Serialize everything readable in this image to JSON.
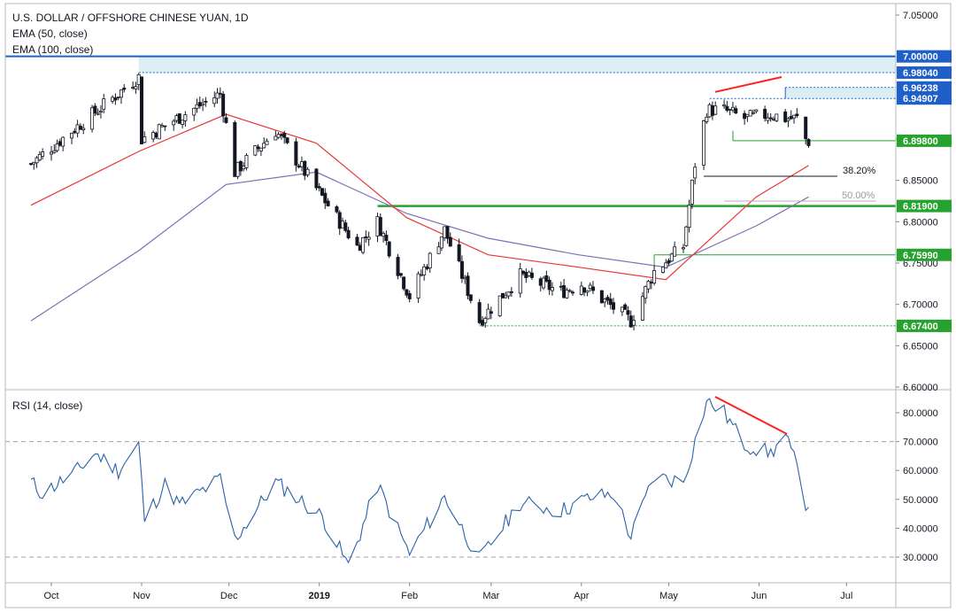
{
  "header": {
    "title": "U.S. DOLLAR / OFFSHORE CHINESE YUAN, 1D",
    "ema50": "EMA (50, close)",
    "ema100": "EMA (100, close)",
    "rsi_title": "RSI (14, close)"
  },
  "colors": {
    "up_candle": "#ffffff",
    "down_candle": "#131722",
    "ema50": "#e53935",
    "ema100": "#7e6fb5",
    "rsi": "#2962a8",
    "level_blue": "#1e5fc9",
    "level_green": "#26a22f",
    "divergence": "#ff2020",
    "fib_line": "#131722"
  },
  "chart_data": [
    {
      "type": "candlestick",
      "title": "U.S. DOLLAR / OFFSHORE CHINESE YUAN, 1D",
      "indicators": [
        "EMA (50, close)",
        "EMA (100, close)"
      ],
      "x_labels": [
        "Oct",
        "Nov",
        "Dec",
        "2019",
        "Feb",
        "Mar",
        "Apr",
        "May",
        "Jun",
        "Jul"
      ],
      "y_ticks": [
        "6.60000",
        "6.65000",
        "6.70000",
        "6.75000",
        "6.80000",
        "6.85000",
        "6.90000",
        "7.05000"
      ],
      "ylim": [
        6.6,
        7.06
      ],
      "key_points": [
        {
          "date": "2018-09-24",
          "close": 6.87
        },
        {
          "date": "2018-10-31",
          "close": 6.975
        },
        {
          "date": "2018-11-01",
          "close": 6.9
        },
        {
          "date": "2018-11-28",
          "close": 6.955
        },
        {
          "date": "2018-12-03",
          "close": 6.86
        },
        {
          "date": "2018-12-17",
          "close": 6.91
        },
        {
          "date": "2019-01-14",
          "close": 6.77
        },
        {
          "date": "2019-01-21",
          "close": 6.8
        },
        {
          "date": "2019-02-01",
          "close": 6.71
        },
        {
          "date": "2019-02-13",
          "close": 6.79
        },
        {
          "date": "2019-02-25",
          "close": 6.68
        },
        {
          "date": "2019-03-11",
          "close": 6.735
        },
        {
          "date": "2019-03-25",
          "close": 6.715
        },
        {
          "date": "2019-04-01",
          "close": 6.725
        },
        {
          "date": "2019-04-18",
          "close": 6.68
        },
        {
          "date": "2019-04-26",
          "close": 6.74
        },
        {
          "date": "2019-05-06",
          "close": 6.77
        },
        {
          "date": "2019-05-10",
          "close": 6.87
        },
        {
          "date": "2019-05-14",
          "close": 6.935
        },
        {
          "date": "2019-05-20",
          "close": 6.935
        },
        {
          "date": "2019-05-27",
          "close": 6.925
        },
        {
          "date": "2019-06-05",
          "close": 6.93
        },
        {
          "date": "2019-06-10",
          "close": 6.925
        },
        {
          "date": "2019-06-14",
          "close": 6.925
        },
        {
          "date": "2019-06-17",
          "close": 6.9
        },
        {
          "date": "2019-06-18",
          "close": 6.897
        }
      ],
      "ema50": [
        {
          "date": "2018-09-24",
          "value": 6.82
        },
        {
          "date": "2018-10-31",
          "value": 6.885
        },
        {
          "date": "2018-11-30",
          "value": 6.93
        },
        {
          "date": "2018-12-31",
          "value": 6.895
        },
        {
          "date": "2019-01-31",
          "value": 6.805
        },
        {
          "date": "2019-02-28",
          "value": 6.76
        },
        {
          "date": "2019-03-31",
          "value": 6.745
        },
        {
          "date": "2019-04-30",
          "value": 6.73
        },
        {
          "date": "2019-05-31",
          "value": 6.83
        },
        {
          "date": "2019-06-18",
          "value": 6.868
        }
      ],
      "ema100": [
        {
          "date": "2018-09-24",
          "value": 6.68
        },
        {
          "date": "2018-10-31",
          "value": 6.765
        },
        {
          "date": "2018-11-30",
          "value": 6.845
        },
        {
          "date": "2018-12-31",
          "value": 6.86
        },
        {
          "date": "2019-01-31",
          "value": 6.81
        },
        {
          "date": "2019-02-28",
          "value": 6.78
        },
        {
          "date": "2019-03-31",
          "value": 6.76
        },
        {
          "date": "2019-04-30",
          "value": 6.745
        },
        {
          "date": "2019-05-31",
          "value": 6.795
        },
        {
          "date": "2019-06-18",
          "value": 6.83
        }
      ],
      "levels": [
        {
          "value": 7.0,
          "label": "7.00000",
          "style": "blue-solid"
        },
        {
          "value": 6.9804,
          "label": "6.98040",
          "style": "blue-dotted"
        },
        {
          "value": 6.96238,
          "label": "6.96238",
          "style": "blue-zone"
        },
        {
          "value": 6.94907,
          "label": "6.94907",
          "style": "blue-zone"
        },
        {
          "value": 6.898,
          "label": "6.89800",
          "style": "green-thin"
        },
        {
          "value": 6.819,
          "label": "6.81900",
          "style": "green-thick"
        },
        {
          "value": 6.7599,
          "label": "6.75990",
          "style": "green-thin"
        },
        {
          "value": 6.674,
          "label": "6.67400",
          "style": "green-dotted"
        }
      ],
      "fibonacci": [
        {
          "label": "38.20%",
          "value": 6.855
        },
        {
          "label": "50.00%",
          "value": 6.825
        }
      ]
    },
    {
      "type": "line",
      "title": "RSI (14, close)",
      "y_ticks": [
        "30.0000",
        "40.0000",
        "50.0000",
        "60.0000",
        "70.0000",
        "80.0000"
      ],
      "ylim": [
        20,
        86
      ],
      "reference_levels": [
        30,
        70
      ],
      "series": [
        {
          "values": [
            {
              "date": "2018-09-24",
              "value": 56
            },
            {
              "date": "2018-09-28",
              "value": 52
            },
            {
              "date": "2018-10-10",
              "value": 60
            },
            {
              "date": "2018-10-16",
              "value": 66
            },
            {
              "date": "2018-10-24",
              "value": 60
            },
            {
              "date": "2018-10-31",
              "value": 69
            },
            {
              "date": "2018-11-02",
              "value": 43
            },
            {
              "date": "2018-11-09",
              "value": 55
            },
            {
              "date": "2018-11-14",
              "value": 48
            },
            {
              "date": "2018-11-28",
              "value": 57
            },
            {
              "date": "2018-12-03",
              "value": 36
            },
            {
              "date": "2018-12-17",
              "value": 56
            },
            {
              "date": "2019-01-02",
              "value": 44
            },
            {
              "date": "2019-01-11",
              "value": 27
            },
            {
              "date": "2019-01-21",
              "value": 55
            },
            {
              "date": "2019-02-01",
              "value": 31
            },
            {
              "date": "2019-02-13",
              "value": 51
            },
            {
              "date": "2019-02-25",
              "value": 29
            },
            {
              "date": "2019-03-11",
              "value": 49
            },
            {
              "date": "2019-03-25",
              "value": 46
            },
            {
              "date": "2019-04-02",
              "value": 50
            },
            {
              "date": "2019-04-12",
              "value": 52
            },
            {
              "date": "2019-04-18",
              "value": 37
            },
            {
              "date": "2019-04-26",
              "value": 58
            },
            {
              "date": "2019-05-06",
              "value": 56
            },
            {
              "date": "2019-05-14",
              "value": 84
            },
            {
              "date": "2019-05-20",
              "value": 80
            },
            {
              "date": "2019-05-27",
              "value": 69
            },
            {
              "date": "2019-06-05",
              "value": 66
            },
            {
              "date": "2019-06-10",
              "value": 72
            },
            {
              "date": "2019-06-14",
              "value": 61
            },
            {
              "date": "2019-06-17",
              "value": 49
            },
            {
              "date": "2019-06-18",
              "value": 48
            }
          ]
        }
      ]
    }
  ]
}
